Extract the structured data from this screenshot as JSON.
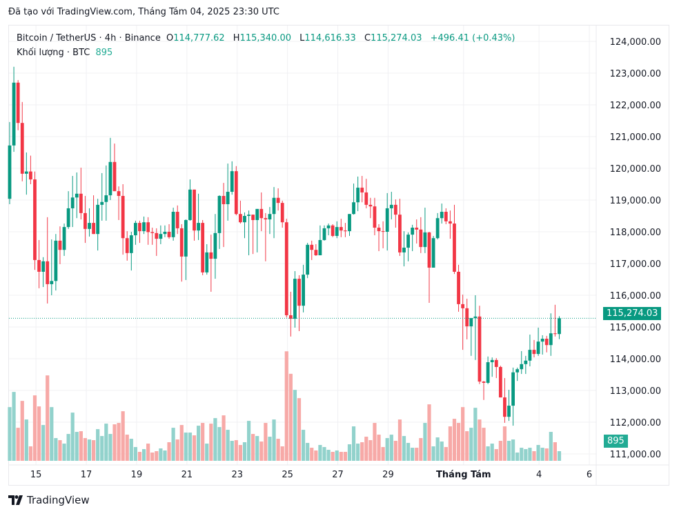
{
  "caption": "Đã tạo với TradingView.com, Tháng Tám 04, 2025 23:30 UTC",
  "legend": {
    "symbol": "Bitcoin / TetherUS · 4h · Binance",
    "o_label": "O",
    "o": "114,777.62",
    "h_label": "H",
    "h": "115,340.00",
    "l_label": "L",
    "l": "114,616.33",
    "c_label": "C",
    "c": "115,274.03",
    "change": "+496.41 (+0.43%)",
    "volume_label": "Khối lượng · BTC",
    "volume": "895"
  },
  "last_price_badge": "115,274.03",
  "volume_badge": "895",
  "logo_text": "TradingView",
  "colors": {
    "up": "#089981",
    "down": "#f23645",
    "up_vol": "#92d2cc",
    "down_vol": "#f7a9a7"
  },
  "chart_data": {
    "type": "candlestick",
    "title": "Bitcoin / TetherUS · 4h · Binance",
    "ylim": [
      110700,
      124800
    ],
    "y_ticks": [
      "124,000.00",
      "123,000.00",
      "122,000.00",
      "121,000.00",
      "120,000.00",
      "119,000.00",
      "118,000.00",
      "117,000.00",
      "116,000.00",
      "115,000.00",
      "114,000.00",
      "113,000.00",
      "112,000.00",
      "111,000.00"
    ],
    "y_tick_values": [
      124000,
      123000,
      122000,
      121000,
      120000,
      119000,
      118000,
      117000,
      116000,
      115000,
      114000,
      113000,
      112000,
      111000
    ],
    "x_ticks": [
      "15",
      "17",
      "19",
      "21",
      "23",
      "25",
      "27",
      "29",
      "Tháng Tám",
      "4",
      "6"
    ],
    "x_tick_days": [
      1,
      3,
      5,
      7,
      9,
      11,
      13,
      15,
      18,
      21,
      23
    ],
    "candles_per_day": 6,
    "first_candle_day_offset": -0.0,
    "first_open": 119040,
    "close": [
      120720,
      122700,
      121430,
      119830,
      119900,
      119650,
      117110,
      116740,
      117070,
      116350,
      116450,
      117720,
      117430,
      118150,
      118740,
      119080,
      119200,
      118590,
      118090,
      118280,
      117930,
      118850,
      118940,
      119150,
      120200,
      119280,
      119130,
      117800,
      117330,
      117890,
      118280,
      118020,
      118300,
      117990,
      117960,
      117780,
      117930,
      118000,
      117830,
      118630,
      118110,
      117220,
      118370,
      119330,
      118040,
      118280,
      116720,
      117350,
      117150,
      117960,
      119130,
      118870,
      119260,
      119910,
      118560,
      118300,
      118500,
      118540,
      118370,
      118720,
      118430,
      118390,
      118560,
      119070,
      118910,
      118300,
      115370,
      115260,
      116520,
      115670,
      116650,
      117590,
      117430,
      117260,
      117740,
      118110,
      118200,
      117870,
      118150,
      118040,
      118020,
      118560,
      118930,
      119390,
      119240,
      118850,
      118800,
      118130,
      118020,
      118000,
      118740,
      118850,
      118540,
      117350,
      117500,
      117910,
      118130,
      118070,
      117520,
      117980,
      116870,
      117800,
      118430,
      118630,
      118330,
      118260,
      116740,
      115720,
      115590,
      115020,
      115280,
      115330,
      113280,
      113240,
      113890,
      113960,
      113740,
      112780,
      112170,
      112520,
      113570,
      113670,
      113830,
      113940,
      114280,
      114150,
      114540,
      114630,
      114430,
      114800,
      114777.62,
      115274.03
    ],
    "high": [
      121460,
      123200,
      122780,
      122090,
      120500,
      120400,
      119900,
      117740,
      117200,
      118460,
      117760,
      117930,
      118170,
      118260,
      119280,
      119760,
      119870,
      120020,
      119130,
      118740,
      119150,
      119040,
      119850,
      120090,
      120960,
      120780,
      119430,
      119500,
      118020,
      118000,
      118350,
      118350,
      118480,
      118460,
      118130,
      118110,
      118200,
      118200,
      118240,
      118760,
      118830,
      118240,
      118390,
      119650,
      119330,
      119200,
      118370,
      117610,
      117910,
      118560,
      119150,
      119540,
      120150,
      120220,
      120070,
      118980,
      118610,
      118670,
      118540,
      118720,
      119240,
      118590,
      118780,
      119410,
      119370,
      118980,
      118410,
      116110,
      116760,
      116630,
      116960,
      117650,
      117720,
      117610,
      118200,
      118200,
      118260,
      118240,
      118330,
      118410,
      118280,
      118560,
      119520,
      119740,
      119760,
      119670,
      119070,
      119070,
      118240,
      118330,
      119220,
      119260,
      119020,
      119040,
      118020,
      117980,
      118220,
      118390,
      118460,
      118760,
      118000,
      117870,
      118590,
      118890,
      118740,
      118670,
      118850,
      116960,
      116020,
      115890,
      115280,
      116000,
      115670,
      113300,
      114070,
      114040,
      114020,
      113780,
      113390,
      113020,
      113720,
      113720,
      114240,
      114090,
      114760,
      114590,
      114980,
      114740,
      114720,
      115430,
      115700,
      115340
    ],
    "low": [
      118870,
      120520,
      121200,
      119590,
      119170,
      119500,
      116800,
      116220,
      116260,
      115740,
      116000,
      116150,
      116980,
      117240,
      118090,
      118150,
      118430,
      118390,
      117650,
      117850,
      117930,
      117410,
      118350,
      118350,
      119000,
      119390,
      118370,
      117280,
      117090,
      116780,
      117590,
      117650,
      117930,
      117590,
      117590,
      117240,
      117610,
      117830,
      117780,
      117720,
      117930,
      116430,
      116480,
      118350,
      117720,
      117740,
      116630,
      116650,
      116110,
      116520,
      117460,
      117520,
      118350,
      119170,
      118520,
      118260,
      117800,
      117260,
      117300,
      117350,
      118020,
      117070,
      117930,
      117800,
      118670,
      118130,
      115300,
      114700,
      114980,
      114870,
      115460,
      116540,
      117110,
      117240,
      117260,
      117720,
      117890,
      117830,
      117800,
      117830,
      117830,
      117870,
      118540,
      118650,
      118930,
      118740,
      118430,
      117890,
      117390,
      117480,
      117410,
      118390,
      118130,
      117240,
      116910,
      117070,
      117390,
      117630,
      117330,
      117330,
      115760,
      116870,
      117760,
      118260,
      118240,
      117780,
      116670,
      115480,
      114280,
      114610,
      114090,
      113960,
      113200,
      112700,
      113200,
      113430,
      113390,
      112780,
      111980,
      112040,
      111890,
      113300,
      113520,
      113520,
      113760,
      114040,
      114090,
      114130,
      114200,
      114090,
      114700,
      114616.33
    ],
    "volume": [
      4984,
      6390,
      3067,
      5559,
      3834,
      1342,
      6071,
      5048,
      3323,
      7924,
      4984,
      2109,
      1917,
      1598,
      2492,
      4473,
      2684,
      2748,
      2109,
      1981,
      1917,
      2939,
      2300,
      3451,
      2492,
      3387,
      3515,
      4601,
      2428,
      2045,
      1278,
      831,
      1086,
      1598,
      767,
      895,
      1150,
      959,
      1725,
      3067,
      1981,
      3323,
      2620,
      2620,
      2364,
      3259,
      3515,
      1598,
      3451,
      3962,
      3131,
      4217,
      2876,
      1853,
      1917,
      1470,
      1725,
      3706,
      2492,
      2300,
      1789,
      3515,
      2237,
      3834,
      2045,
      1342,
      10160,
      8073,
      6582,
      5815,
      2876,
      1661,
      1214,
      959,
      1470,
      1278,
      1022,
      831,
      959,
      831,
      831,
      1534,
      3195,
      1598,
      1725,
      2237,
      1917,
      3515,
      2428,
      1278,
      2109,
      2428,
      1853,
      3834,
      2300,
      1661,
      1214,
      1214,
      2109,
      3515,
      5240,
      1342,
      2173,
      1789,
      1278,
      3195,
      3898,
      3515,
      4984,
      2748,
      3067,
      4920,
      3834,
      3067,
      1342,
      1598,
      1086,
      1853,
      3195,
      1853,
      1981,
      767,
      1214,
      1086,
      1214,
      895,
      1470,
      1214,
      1150,
      2684,
      1725,
      895
    ],
    "last_price": 115274.03
  }
}
